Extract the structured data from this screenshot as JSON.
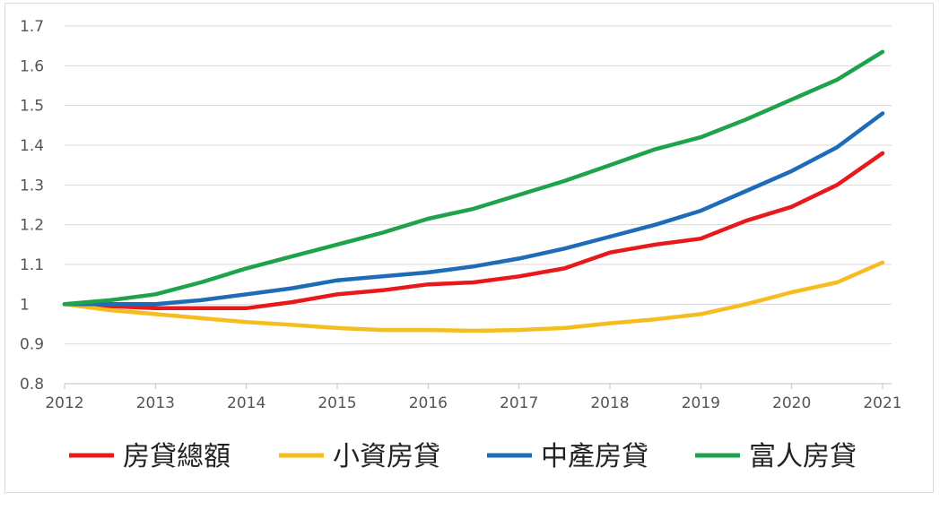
{
  "chart_data": {
    "type": "line",
    "title": "",
    "xlabel": "",
    "ylabel": "",
    "xlim": [
      2012,
      2021
    ],
    "ylim": [
      0.8,
      1.7
    ],
    "x_ticks": [
      "2012",
      "2013",
      "2014",
      "2015",
      "2016",
      "2017",
      "2018",
      "2019",
      "2020",
      "2021"
    ],
    "y_ticks": [
      "0.8",
      "0.9",
      "1",
      "1.1",
      "1.2",
      "1.3",
      "1.4",
      "1.5",
      "1.6",
      "1.7"
    ],
    "grid": true,
    "legend_position": "bottom",
    "x": [
      2012,
      2012.5,
      2013,
      2013.5,
      2014,
      2014.5,
      2015,
      2015.5,
      2016,
      2016.5,
      2017,
      2017.5,
      2018,
      2018.5,
      2019,
      2019.5,
      2020,
      2020.5,
      2021
    ],
    "series": [
      {
        "name": "房貸總額",
        "color": "#e8191c",
        "values": [
          1.0,
          0.995,
          0.99,
          0.99,
          0.99,
          1.005,
          1.025,
          1.035,
          1.05,
          1.055,
          1.07,
          1.09,
          1.13,
          1.15,
          1.165,
          1.21,
          1.245,
          1.3,
          1.38
        ]
      },
      {
        "name": "小資房貸",
        "color": "#f5bd1f",
        "values": [
          1.0,
          0.985,
          0.975,
          0.965,
          0.955,
          0.948,
          0.94,
          0.935,
          0.935,
          0.933,
          0.935,
          0.94,
          0.952,
          0.962,
          0.975,
          1.0,
          1.03,
          1.055,
          1.105
        ]
      },
      {
        "name": "中產房貸",
        "color": "#1e6bb8",
        "values": [
          1.0,
          1.0,
          1.0,
          1.01,
          1.025,
          1.04,
          1.06,
          1.07,
          1.08,
          1.095,
          1.115,
          1.14,
          1.17,
          1.2,
          1.235,
          1.285,
          1.335,
          1.395,
          1.48
        ]
      },
      {
        "name": "富人房貸",
        "color": "#1fa34a",
        "values": [
          1.0,
          1.01,
          1.025,
          1.055,
          1.09,
          1.12,
          1.15,
          1.18,
          1.215,
          1.24,
          1.275,
          1.31,
          1.35,
          1.39,
          1.42,
          1.465,
          1.515,
          1.565,
          1.635
        ]
      }
    ]
  }
}
